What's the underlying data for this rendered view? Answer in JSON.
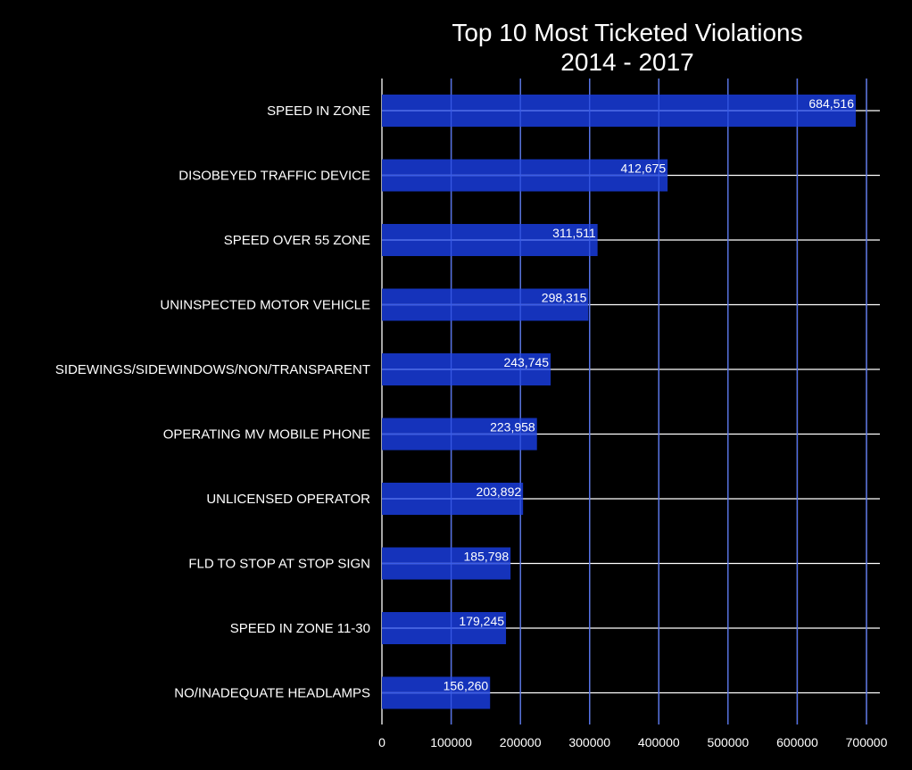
{
  "chart_data": {
    "type": "bar",
    "orientation": "horizontal",
    "title": "Top 10 Most Ticketed Violations",
    "subtitle": "2014 - 2017",
    "xlabel": "",
    "ylabel": "",
    "categories": [
      "SPEED IN ZONE",
      "DISOBEYED TRAFFIC DEVICE",
      "SPEED OVER 55 ZONE",
      "UNINSPECTED MOTOR VEHICLE",
      "SIDEWINGS/SIDEWINDOWS/NON/TRANSPARENT",
      "OPERATING MV MOBILE PHONE",
      "UNLICENSED OPERATOR",
      "FLD TO STOP AT STOP SIGN",
      "SPEED IN ZONE 11-30",
      "NO/INADEQUATE HEADLAMPS"
    ],
    "values": [
      684516,
      412675,
      311511,
      298315,
      243745,
      223958,
      203892,
      185798,
      179245,
      156260
    ],
    "data_labels": [
      "684,516",
      "412,675",
      "311,511",
      "298,315",
      "243,745",
      "223,958",
      "203,892",
      "185,798",
      "179,245",
      "156,260"
    ],
    "xticks": [
      0,
      100000,
      200000,
      300000,
      400000,
      500000,
      600000,
      700000
    ],
    "xtick_labels": [
      "0",
      "100000",
      "200000",
      "300000",
      "400000",
      "500000",
      "600000",
      "700000"
    ],
    "xlim": [
      0,
      720000
    ],
    "grid": true,
    "background": "#000000",
    "bar_color": "#1533bb",
    "grid_color": "#ffffff",
    "text_color": "#ffffff"
  }
}
